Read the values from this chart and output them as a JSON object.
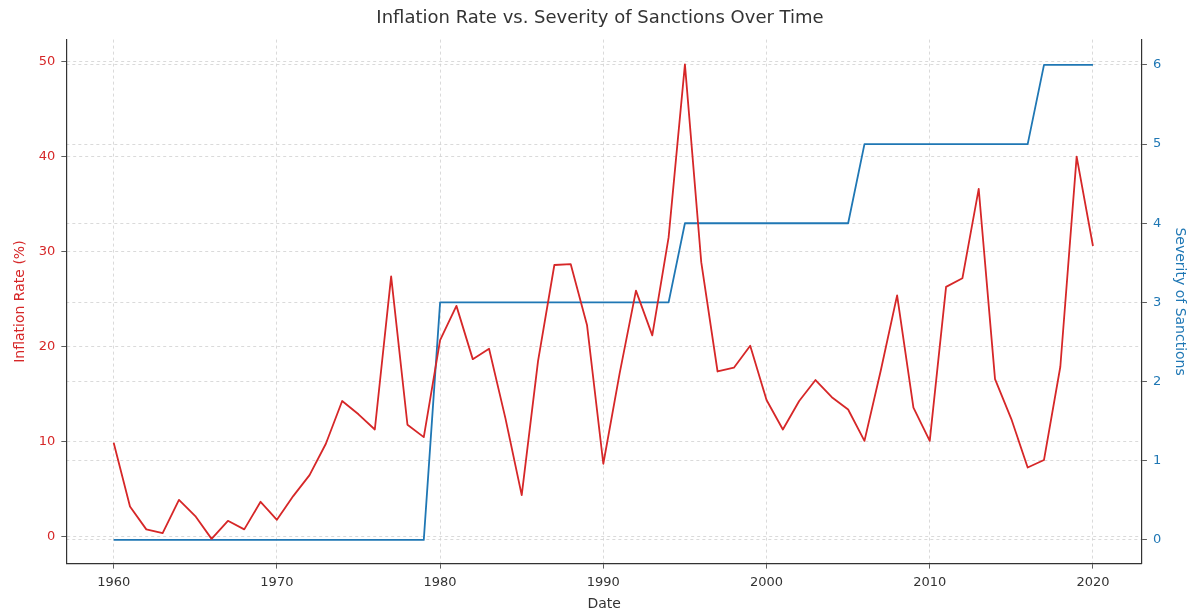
{
  "chart_data": {
    "type": "line",
    "title": "Inflation Rate vs. Severity of Sanctions Over Time",
    "xlabel": "Date",
    "ylabel": "Inflation Rate (%)",
    "y2label": "Severity of Sanctions",
    "x": [
      1960,
      1961,
      1962,
      1963,
      1964,
      1965,
      1966,
      1967,
      1968,
      1969,
      1970,
      1971,
      1972,
      1973,
      1974,
      1975,
      1976,
      1977,
      1978,
      1979,
      1980,
      1981,
      1982,
      1983,
      1984,
      1985,
      1986,
      1987,
      1988,
      1989,
      1990,
      1991,
      1992,
      1993,
      1994,
      1995,
      1996,
      1997,
      1998,
      1999,
      2000,
      2001,
      2002,
      2003,
      2004,
      2005,
      2006,
      2007,
      2008,
      2009,
      2010,
      2011,
      2012,
      2013,
      2014,
      2015,
      2016,
      2017,
      2018,
      2019,
      2020
    ],
    "series": [
      {
        "color": "#d62728",
        "values": [
          9.9,
          3.2,
          0.8,
          0.4,
          3.9,
          2.2,
          -0.2,
          1.7,
          0.8,
          3.7,
          1.8,
          4.3,
          6.5,
          9.8,
          14.3,
          12.9,
          11.3,
          27.4,
          11.8,
          10.5,
          20.7,
          24.3,
          18.7,
          19.8,
          12.5,
          4.4,
          18.5,
          28.6,
          28.7,
          22.3,
          7.7,
          17.2,
          25.9,
          21.2,
          31.5,
          49.7,
          28.9,
          17.4,
          17.8,
          20.1,
          14.4,
          11.3,
          14.3,
          16.5,
          14.7,
          13.4,
          10.1,
          17.5,
          25.4,
          13.6,
          10.1,
          26.3,
          27.2,
          36.6,
          16.6,
          12.4,
          7.3,
          8.1,
          17.9,
          40.0,
          30.6
        ]
      },
      {
        "color": "#1f77b4",
        "axis": "y2",
        "values": [
          0,
          0,
          0,
          0,
          0,
          0,
          0,
          0,
          0,
          0,
          0,
          0,
          0,
          0,
          0,
          0,
          0,
          0,
          0,
          0,
          3,
          3,
          3,
          3,
          3,
          3,
          3,
          3,
          3,
          3,
          3,
          3,
          3,
          3,
          3,
          4,
          4,
          4,
          4,
          4,
          4,
          4,
          4,
          4,
          4,
          4,
          5,
          5,
          5,
          5,
          5,
          5,
          5,
          5,
          5,
          5,
          5,
          6,
          6,
          6,
          6
        ]
      }
    ],
    "xlim": [
      1957.1,
      2023
    ],
    "xticks": [
      1960,
      1970,
      1980,
      1990,
      2000,
      2010,
      2020
    ],
    "ylim": [
      -2.8,
      52.3
    ],
    "yticks": [
      0,
      10,
      20,
      30,
      40,
      50
    ],
    "y2lim": [
      -0.3,
      6.32
    ],
    "y2ticks": [
      0,
      1,
      2,
      3,
      4,
      5,
      6
    ],
    "grid": true,
    "legend": false,
    "marker": "none",
    "line_style": "solid"
  }
}
